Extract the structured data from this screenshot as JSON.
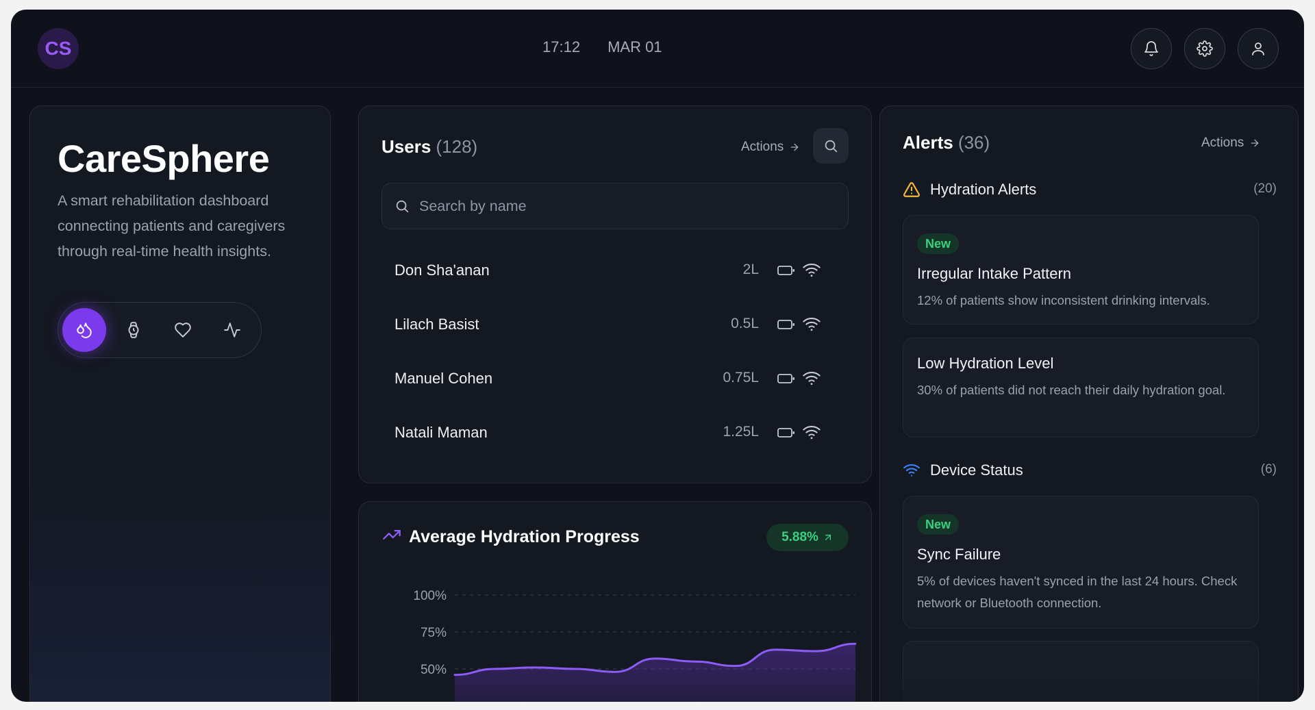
{
  "header": {
    "logo_text": "CS",
    "time": "17:12",
    "date": "MAR 01",
    "buttons": [
      {
        "name": "notifications-button",
        "icon": "bell-icon"
      },
      {
        "name": "settings-button",
        "icon": "gear-icon"
      },
      {
        "name": "profile-button",
        "icon": "user-icon"
      }
    ]
  },
  "intro": {
    "title": "CareSphere",
    "tagline": "A smart rehabilitation dashboard connecting patients and caregivers through real-time health insights.",
    "modes": [
      {
        "name": "hydration",
        "icon": "droplets-icon",
        "active": true
      },
      {
        "name": "watch",
        "icon": "watch-icon",
        "active": false
      },
      {
        "name": "heart",
        "icon": "heart-icon",
        "active": false
      },
      {
        "name": "activity",
        "icon": "pulse-icon",
        "active": false
      }
    ]
  },
  "users": {
    "title": "Users",
    "count": "(128)",
    "actions_label": "Actions",
    "search_placeholder": "Search by name",
    "rows": [
      {
        "name": "Don Sha'anan",
        "amount": "2L"
      },
      {
        "name": "Lilach Basist",
        "amount": "0.5L"
      },
      {
        "name": "Manuel Cohen",
        "amount": "0.75L"
      },
      {
        "name": "Natali Maman",
        "amount": "1.25L"
      }
    ]
  },
  "hydration_chart": {
    "title": "Average Hydration Progress",
    "change": "5.88%"
  },
  "chart_data": {
    "type": "area",
    "title": "Average Hydration Progress",
    "y_tick_labels": [
      "100%",
      "75%",
      "50%"
    ],
    "y_ticks": [
      100,
      75,
      50
    ],
    "ylim": [
      40,
      100
    ],
    "grid": true,
    "points": [
      46,
      50,
      51,
      50,
      48,
      57,
      55,
      52,
      63,
      62,
      67
    ]
  },
  "alerts": {
    "title": "Alerts",
    "count": "(36)",
    "actions_label": "Actions",
    "sections": [
      {
        "name": "Hydration Alerts",
        "count": "(20)",
        "icon": "warning-icon",
        "color": "#f5b83a",
        "items": [
          {
            "badge": "New",
            "title": "Irregular Intake Pattern",
            "desc": "12% of patients show inconsistent drinking intervals."
          },
          {
            "badge": "",
            "title": "Low Hydration Level",
            "desc": "30% of patients did not reach their daily hydration goal."
          }
        ]
      },
      {
        "name": "Device Status",
        "count": "(6)",
        "icon": "wifi-icon",
        "color": "#3b82f6",
        "items": [
          {
            "badge": "New",
            "title": "Sync Failure",
            "desc": "5% of devices haven't synced in the last 24 hours. Check network or Bluetooth connection."
          }
        ]
      }
    ]
  },
  "colors": {
    "accent": "#7c3aed",
    "success": "#3ad07e",
    "warning": "#f5b83a",
    "info": "#3b82f6"
  }
}
